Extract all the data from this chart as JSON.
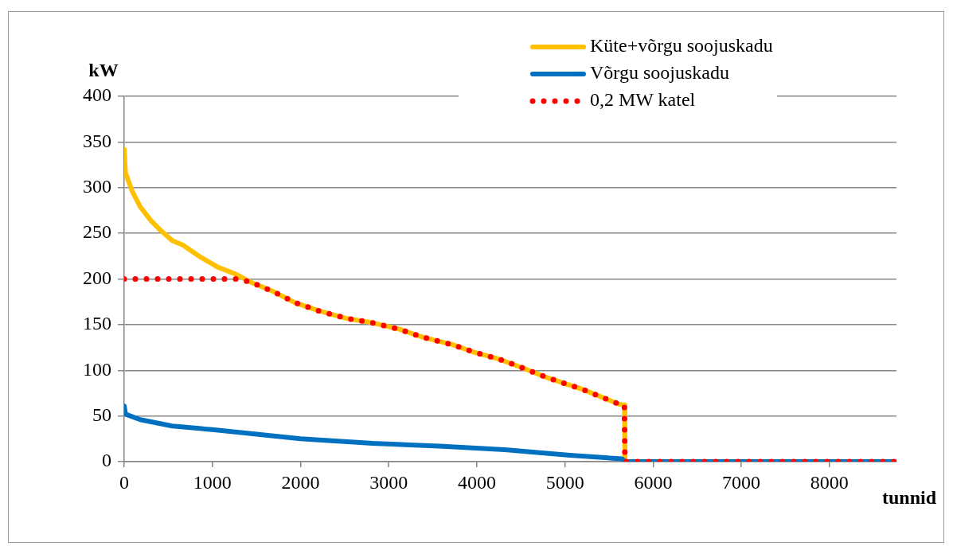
{
  "chart_data": {
    "type": "line",
    "xlabel": "tunnid",
    "ylabel": "kW",
    "xlim": [
      0,
      8760
    ],
    "xticks": [
      0,
      1000,
      2000,
      3000,
      4000,
      5000,
      6000,
      7000,
      8000
    ],
    "ylim": [
      0,
      400
    ],
    "yticks": [
      0,
      50,
      100,
      150,
      200,
      250,
      300,
      350,
      400
    ],
    "grid": "y",
    "legend": "top right",
    "marker": "none",
    "series": [
      {
        "name": "Küte+võrgu soojuskadu",
        "color": "#ffc000",
        "x": [
          0,
          15,
          91,
          182,
          303,
          394,
          545,
          667,
          848,
          1061,
          1273,
          1424,
          1697,
          1939,
          2212,
          2515,
          2818,
          3121,
          3394,
          3727,
          3963,
          4259,
          4537,
          4796,
          5204,
          5611,
          5674,
          5680,
          8760
        ],
        "values": [
          342,
          316,
          296,
          279,
          264,
          255,
          242,
          237,
          225,
          213,
          205,
          197,
          186,
          174,
          165,
          157,
          152,
          145,
          136,
          128,
          120,
          112,
          102,
          92,
          79,
          63,
          62,
          0,
          0
        ]
      },
      {
        "name": "Võrgu soojuskadu",
        "color": "#0070c0",
        "x": [
          0,
          15,
          182,
          545,
          1000,
          2000,
          2818,
          3574,
          4315,
          5056,
          5648,
          5680,
          8760
        ],
        "values": [
          61,
          52,
          46,
          39,
          35,
          25,
          20,
          17,
          13,
          7,
          3,
          0,
          0
        ]
      },
      {
        "name": "0,2 MW katel",
        "color": "#ff0000",
        "line_style": "dotted",
        "x": [
          0,
          1273,
          1424,
          1697,
          1939,
          2212,
          2515,
          2818,
          3121,
          3394,
          3727,
          3963,
          4259,
          4537,
          4796,
          5204,
          5611,
          5674,
          5680,
          8760
        ],
        "values": [
          200,
          200,
          197,
          186,
          174,
          165,
          157,
          152,
          145,
          136,
          128,
          120,
          112,
          102,
          92,
          79,
          63,
          62,
          0,
          0
        ]
      }
    ]
  }
}
